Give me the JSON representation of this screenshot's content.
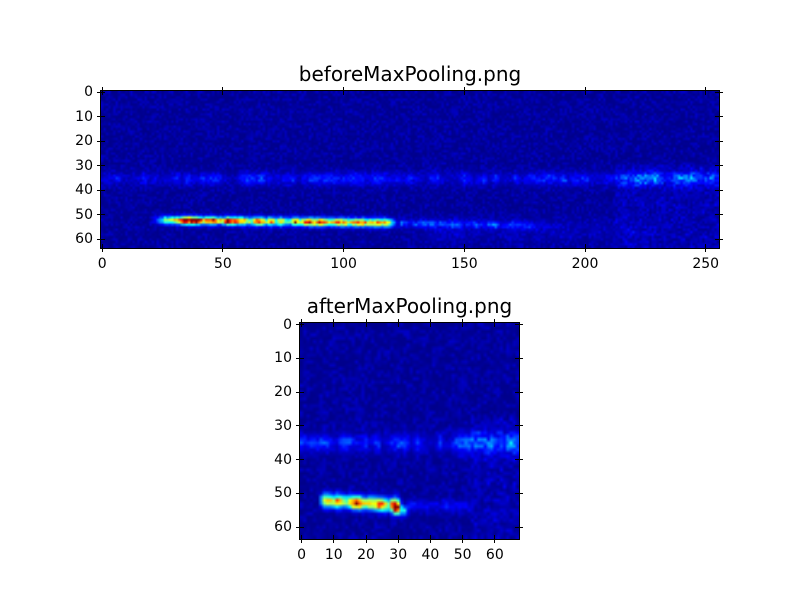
{
  "figure": {
    "background": "#ffffff",
    "colors": {
      "colormap_low_navy": "#000080",
      "band_blue": "#0a50ff",
      "streak_yellow": "#ffd400",
      "streak_red_max": "#7f0000"
    }
  },
  "chart_data": [
    {
      "type": "heatmap",
      "title": "beforeMaxPooling.png",
      "rows": 64,
      "cols": 256,
      "xticks": [
        0,
        50,
        100,
        150,
        200,
        250
      ],
      "yticks": [
        0,
        10,
        20,
        30,
        40,
        50,
        60
      ],
      "xlim": [
        -0.5,
        255.5
      ],
      "ylim": [
        63.5,
        -0.5
      ],
      "colormap": "jet",
      "grid": false,
      "base_value": 0.012,
      "features": [
        {
          "kind": "noise",
          "amp": 0.06,
          "power": 2.2
        },
        {
          "kind": "band",
          "row0": 35.3,
          "sigma": 1.7,
          "col0": -4,
          "col1": 260,
          "amp": 0.17,
          "speckle": 0.8,
          "period": 2.2,
          "cell_jitter": 0.5,
          "ramp_in": 0,
          "ramp_out": 0
        },
        {
          "kind": "band",
          "row0": 35.0,
          "sigma": 2.6,
          "col0": 212,
          "col1": 258,
          "amp": 0.1,
          "speckle": 0.55,
          "period": 3,
          "cell_jitter": 0.5,
          "ramp_in": 8,
          "ramp_out": 0
        },
        {
          "kind": "band",
          "row0": 56.5,
          "sigma": 3.5,
          "col0": 125,
          "col1": 235,
          "amp": 0.05,
          "speckle": 0.8,
          "period": 4,
          "cell_jitter": 0.6,
          "ramp_in": 15,
          "ramp_out": 15
        },
        {
          "kind": "streak",
          "row0": 52.1,
          "row1": 53.3,
          "sigma": 1.15,
          "col0": 19,
          "col1": 123,
          "amp": 0.92,
          "speckle": 0.5,
          "period": 2.0,
          "ramp_in": 12,
          "ramp_out": 6,
          "cell_jitter": 0.3
        },
        {
          "kind": "streak",
          "row0": 52.0,
          "row1": 52.6,
          "sigma": 0.7,
          "col0": 24,
          "col1": 62,
          "amp": 0.3,
          "speckle": 0.25,
          "period": 3,
          "ramp_in": 6,
          "ramp_out": 10,
          "cell_jitter": 0.2
        },
        {
          "kind": "streak",
          "row0": 53.4,
          "row1": 54.6,
          "sigma": 1.0,
          "col0": 122,
          "col1": 195,
          "amp": 0.24,
          "speckle": 0.6,
          "period": 2.2,
          "ramp_in": 2,
          "ramp_out": 30,
          "cell_jitter": 0.5
        },
        {
          "kind": "region",
          "row0": 30,
          "row1": 64,
          "col0": 213,
          "col1": 256,
          "amp": 0.05,
          "power": 1.6
        }
      ]
    },
    {
      "type": "heatmap",
      "title": "afterMaxPooling.png",
      "rows": 64,
      "cols": 68,
      "xticks": [
        0,
        10,
        20,
        30,
        40,
        50,
        60
      ],
      "yticks": [
        0,
        10,
        20,
        30,
        40,
        50,
        60
      ],
      "xlim": [
        -0.5,
        67.5
      ],
      "ylim": [
        63.5,
        -0.5
      ],
      "colormap": "jet",
      "grid": false,
      "base_value": 0.012,
      "features": [
        {
          "kind": "noise",
          "amp": 0.06,
          "power": 2.2
        },
        {
          "kind": "band",
          "row0": 35.0,
          "sigma": 1.8,
          "col0": -2,
          "col1": 70,
          "amp": 0.17,
          "speckle": 0.75,
          "period": 1.8,
          "cell_jitter": 0.5,
          "ramp_in": 0,
          "ramp_out": 0
        },
        {
          "kind": "band",
          "row0": 35.2,
          "sigma": 2.6,
          "col0": 45,
          "col1": 70,
          "amp": 0.12,
          "speckle": 0.5,
          "period": 2,
          "cell_jitter": 0.5,
          "ramp_in": 4,
          "ramp_out": 0
        },
        {
          "kind": "streak",
          "row0": 52.0,
          "row1": 53.6,
          "sigma": 1.3,
          "col0": 5,
          "col1": 31.5,
          "amp": 1.0,
          "speckle": 0.45,
          "period": 1.6,
          "ramp_in": 3,
          "ramp_out": 2,
          "cell_jitter": 0.28
        },
        {
          "kind": "streak",
          "row0": 54.6,
          "row1": 55.4,
          "sigma": 1.1,
          "col0": 27,
          "col1": 33.5,
          "amp": 0.5,
          "speckle": 0.3,
          "period": 2,
          "ramp_in": 2,
          "ramp_out": 1.5,
          "cell_jitter": 0.3
        },
        {
          "kind": "streak",
          "row0": 53.4,
          "row1": 53.9,
          "sigma": 1.1,
          "col0": 32,
          "col1": 56,
          "amp": 0.22,
          "speckle": 0.6,
          "period": 1.8,
          "ramp_in": 1,
          "ramp_out": 10,
          "cell_jitter": 0.5
        },
        {
          "kind": "region",
          "row0": 28,
          "row1": 64,
          "col0": 53,
          "col1": 68,
          "amp": 0.05,
          "power": 1.6
        }
      ]
    }
  ]
}
